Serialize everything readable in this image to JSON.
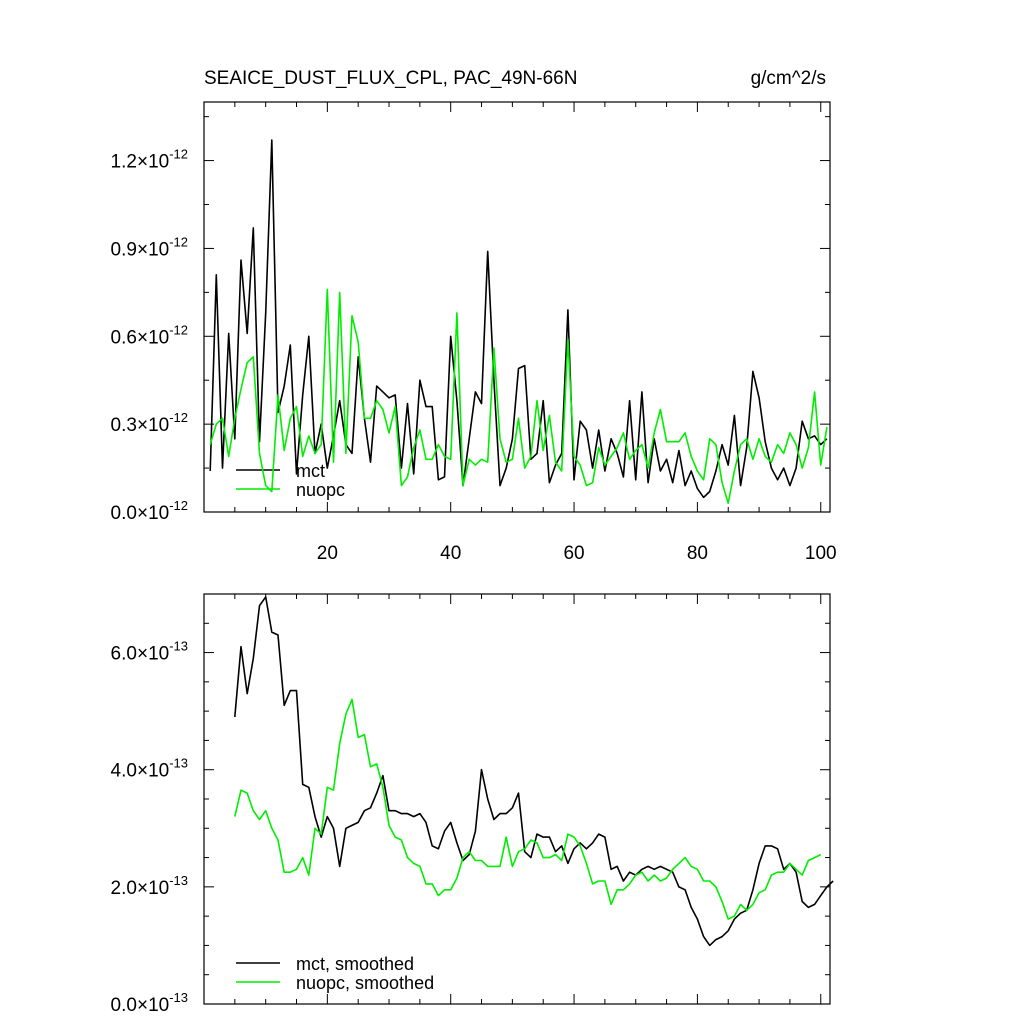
{
  "header": {
    "title": "SEAICE_DUST_FLUX_CPL, PAC_49N-66N",
    "units": "g/cm^2/s"
  },
  "colors": {
    "mct": "#000000",
    "nuopc": "#00ee00"
  },
  "chart_data": [
    {
      "type": "line",
      "xlim": [
        0,
        101.5
      ],
      "ylim": [
        0,
        1.4e-12
      ],
      "x_start": 1,
      "xticks": [
        20,
        40,
        60,
        80,
        100
      ],
      "ytick_values": [
        0,
        3e-13,
        6e-13,
        9e-13,
        1.2e-12
      ],
      "ytick_labels": [
        {
          "mant": "0.0",
          "exp": "-12"
        },
        {
          "mant": "0.3",
          "exp": "-12"
        },
        {
          "mant": "0.6",
          "exp": "-12"
        },
        {
          "mant": "0.9",
          "exp": "-12"
        },
        {
          "mant": "1.2",
          "exp": "-12"
        }
      ],
      "legend_position": "bottom-left",
      "series": [
        {
          "name": "mct",
          "color_key": "mct",
          "values": [
            1.4e-13,
            8.1e-13,
            1.5e-13,
            6.1e-13,
            2.5e-13,
            8.6e-13,
            6.1e-13,
            9.7e-13,
            2.4e-13,
            6.8e-13,
            1.27e-12,
            3.4e-13,
            4.3e-13,
            5.7e-13,
            1.3e-13,
            4e-13,
            6e-13,
            2e-13,
            3e-13,
            1.5e-13,
            2.6e-13,
            3.8e-13,
            2.3e-13,
            2e-13,
            5.3e-13,
            3.2e-13,
            1.7e-13,
            4.3e-13,
            4.1e-13,
            3.9e-13,
            4e-13,
            1.5e-13,
            3.7e-13,
            1.3e-13,
            4.5e-13,
            3.6e-13,
            3.6e-13,
            1.1e-13,
            1.2e-13,
            6e-13,
            3.8e-13,
            9e-14,
            2.5e-13,
            4.1e-13,
            3.7e-13,
            8.9e-13,
            4.5e-13,
            9e-14,
            1.5e-13,
            2.5e-13,
            4.9e-13,
            5e-13,
            1.8e-13,
            2e-13,
            3.8e-13,
            1e-13,
            1.6e-13,
            2e-13,
            6.9e-13,
            1.1e-13,
            3.1e-13,
            2.8e-13,
            1.5e-13,
            2.8e-13,
            1.4e-13,
            2.5e-13,
            2e-13,
            1.2e-13,
            3.8e-13,
            1.1e-13,
            4.1e-13,
            1e-13,
            2.5e-13,
            1.4e-13,
            1.8e-13,
            1e-13,
            2.1e-13,
            9e-14,
            1.4e-13,
            8e-14,
            5e-14,
            7e-14,
            1.4e-13,
            2.3e-13,
            1.6e-13,
            3.3e-13,
            9e-14,
            2.2e-13,
            4.8e-13,
            3.9e-13,
            2.4e-13,
            1.5e-13,
            1.1e-13,
            1.5e-13,
            9e-14,
            1.5e-13,
            3.1e-13,
            2.5e-13,
            2.6e-13,
            2.3e-13,
            2.5e-13
          ]
        },
        {
          "name": "nuopc",
          "color_key": "nuopc",
          "values": [
            2.3e-13,
            3e-13,
            3.2e-13,
            1.9e-13,
            3.2e-13,
            4.2e-13,
            5.1e-13,
            5.3e-13,
            2e-13,
            9e-14,
            7e-14,
            4e-13,
            2.1e-13,
            3.2e-13,
            3.6e-13,
            1.9e-13,
            2.6e-13,
            2e-13,
            2.3e-13,
            7.6e-13,
            1.7e-13,
            7.5e-13,
            2e-13,
            6.7e-13,
            5.8e-13,
            3.2e-13,
            3.2e-13,
            3.8e-13,
            3.5e-13,
            2.7e-13,
            3.6e-13,
            9e-14,
            1.2e-13,
            2.2e-13,
            2.8e-13,
            1.8e-13,
            1.8e-13,
            2.3e-13,
            1.9e-13,
            1.8e-13,
            6.8e-13,
            9e-14,
            1.8e-13,
            1.6e-13,
            1.8e-13,
            1.7e-13,
            5.6e-13,
            2.5e-13,
            1.7e-13,
            1.8e-13,
            3.2e-13,
            1.5e-13,
            1.9e-13,
            3.8e-13,
            2.1e-13,
            3.3e-13,
            1.7e-13,
            1.4e-13,
            5.9e-13,
            1.9e-13,
            1.6e-13,
            9e-14,
            1e-13,
            2.2e-13,
            1.6e-13,
            1.9e-13,
            2.2e-13,
            2.7e-13,
            1.8e-13,
            2.1e-13,
            2.3e-13,
            1.5e-13,
            2.7e-13,
            3.5e-13,
            2.4e-13,
            2.4e-13,
            2.4e-13,
            2.7e-13,
            1.9e-13,
            1.4e-13,
            1.1e-13,
            2.5e-13,
            2.3e-13,
            1e-13,
            3e-14,
            1.4e-13,
            2.3e-13,
            2.5e-13,
            1.8e-13,
            2.5e-13,
            1.9e-13,
            1.7e-13,
            2.3e-13,
            2e-13,
            2.7e-13,
            2.3e-13,
            1.5e-13,
            2.2e-13,
            4.1e-13,
            1.6e-13,
            2.9e-13
          ]
        }
      ]
    },
    {
      "type": "line",
      "xlim": [
        0,
        101.5
      ],
      "ylim": [
        0,
        7e-13
      ],
      "x_start": 5,
      "xticks": [
        20,
        40,
        60,
        80,
        100
      ],
      "ytick_values": [
        0,
        2e-13,
        4e-13,
        6e-13
      ],
      "ytick_labels": [
        {
          "mant": "0.0",
          "exp": "-13"
        },
        {
          "mant": "2.0",
          "exp": "-13"
        },
        {
          "mant": "4.0",
          "exp": "-13"
        },
        {
          "mant": "6.0",
          "exp": "-13"
        }
      ],
      "legend_position": "bottom-left",
      "series": [
        {
          "name": "mct, smoothed",
          "color_key": "mct",
          "values": [
            4.9e-13,
            6.1e-13,
            5.3e-13,
            5.9e-13,
            6.8e-13,
            6.95e-13,
            6.35e-13,
            6.3e-13,
            5.1e-13,
            5.35e-13,
            5.35e-13,
            3.75e-13,
            3.7e-13,
            3.2e-13,
            2.85e-13,
            3.2e-13,
            3e-13,
            2.35e-13,
            3e-13,
            3.05e-13,
            3.1e-13,
            3.3e-13,
            3.35e-13,
            3.6e-13,
            3.9e-13,
            3.3e-13,
            3.3e-13,
            3.25e-13,
            3.25e-13,
            3.2e-13,
            3.25e-13,
            3.1e-13,
            2.7e-13,
            2.65e-13,
            2.95e-13,
            3.1e-13,
            2.75e-13,
            2.45e-13,
            2.55e-13,
            2.95e-13,
            4e-13,
            3.5e-13,
            3.15e-13,
            3.25e-13,
            3.25e-13,
            3.35e-13,
            3.6e-13,
            2.6e-13,
            2.5e-13,
            2.9e-13,
            2.85e-13,
            2.85e-13,
            2.6e-13,
            2.7e-13,
            2.4e-13,
            2.65e-13,
            2.75e-13,
            2.65e-13,
            2.75e-13,
            2.9e-13,
            2.85e-13,
            2.3e-13,
            2.35e-13,
            2.1e-13,
            2.25e-13,
            2.2e-13,
            2.3e-13,
            2.35e-13,
            2.3e-13,
            2.35e-13,
            2.3e-13,
            2.25e-13,
            2e-13,
            1.95e-13,
            1.65e-13,
            1.45e-13,
            1.15e-13,
            1e-13,
            1.1e-13,
            1.15e-13,
            1.25e-13,
            1.45e-13,
            1.55e-13,
            1.6e-13,
            1.95e-13,
            2.4e-13,
            2.7e-13,
            2.7e-13,
            2.65e-13,
            2.3e-13,
            2.4e-13,
            2.25e-13,
            1.75e-13,
            1.65e-13,
            1.7e-13,
            1.85e-13,
            2e-13,
            2.1e-13
          ]
        },
        {
          "name": "nuopc, smoothed",
          "color_key": "nuopc",
          "values": [
            3.2e-13,
            3.65e-13,
            3.6e-13,
            3.3e-13,
            3.15e-13,
            3.3e-13,
            3e-13,
            2.8e-13,
            2.25e-13,
            2.25e-13,
            2.3e-13,
            2.5e-13,
            2.2e-13,
            3e-13,
            2.9e-13,
            3.7e-13,
            3.65e-13,
            4.45e-13,
            4.95e-13,
            5.2e-13,
            4.55e-13,
            4.6e-13,
            4.05e-13,
            4.1e-13,
            3.7e-13,
            3.05e-13,
            2.85e-13,
            2.8e-13,
            2.5e-13,
            2.4e-13,
            2.35e-13,
            2.05e-13,
            2.05e-13,
            1.85e-13,
            1.95e-13,
            1.95e-13,
            2.15e-13,
            2.5e-13,
            2.6e-13,
            2.45e-13,
            2.45e-13,
            2.35e-13,
            2.35e-13,
            2.35e-13,
            2.85e-13,
            2.35e-13,
            2.6e-13,
            2.65e-13,
            2.8e-13,
            2.75e-13,
            2.5e-13,
            2.5e-13,
            2.55e-13,
            2.45e-13,
            2.9e-13,
            2.85e-13,
            2.7e-13,
            2.4e-13,
            2.05e-13,
            2.1e-13,
            2.1e-13,
            1.7e-13,
            1.95e-13,
            1.95e-13,
            2.05e-13,
            2.2e-13,
            2.25e-13,
            2.1e-13,
            2.2e-13,
            2.1e-13,
            2.15e-13,
            2.3e-13,
            2.4e-13,
            2.5e-13,
            2.35e-13,
            2.3e-13,
            2.1e-13,
            2.1e-13,
            2e-13,
            1.75e-13,
            1.45e-13,
            1.5e-13,
            1.7e-13,
            1.6e-13,
            1.7e-13,
            1.9e-13,
            1.95e-13,
            2.2e-13,
            2.25e-13,
            2.25e-13,
            2.4e-13,
            2.3e-13,
            2.2e-13,
            2.45e-13,
            2.5e-13,
            2.55e-13
          ]
        }
      ]
    }
  ]
}
